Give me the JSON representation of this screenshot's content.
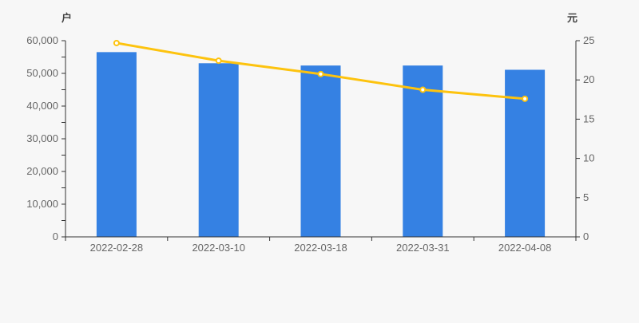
{
  "page": {
    "background": "#f7f7f7"
  },
  "chart_data": {
    "type": "combo",
    "title": "",
    "legend": "none",
    "grid": "off",
    "categories": [
      "2022-02-28",
      "2022-03-10",
      "2022-03-18",
      "2022-03-31",
      "2022-04-08"
    ],
    "series": [
      {
        "id": "bar-series",
        "type": "bar",
        "axis": "left",
        "color": "#3581e3",
        "values": [
          56500,
          53100,
          52400,
          52400,
          51100
        ]
      },
      {
        "id": "line-series",
        "type": "line",
        "axis": "right",
        "color": "#fdc30e",
        "marker": "empty-circle",
        "marker_fill": "#ffffff",
        "values": [
          24.7,
          22.45,
          20.75,
          18.75,
          17.6
        ]
      }
    ],
    "left_axis": {
      "name": "户",
      "min": 0,
      "max": 60000,
      "major_interval": 10000,
      "minor_interval": 5000,
      "tick_labels": [
        "0",
        "10,000",
        "20,000",
        "30,000",
        "40,000",
        "50,000",
        "60,000"
      ]
    },
    "right_axis": {
      "name": "元",
      "min": 0,
      "max": 25,
      "major_interval": 5,
      "tick_labels": [
        "0",
        "5",
        "10",
        "15",
        "20",
        "25"
      ]
    },
    "styles": {
      "background": "#f7f7f7",
      "axis_line_color": "#333333",
      "tick_label_color": "#666666",
      "axis_name_color": "#444444"
    }
  }
}
